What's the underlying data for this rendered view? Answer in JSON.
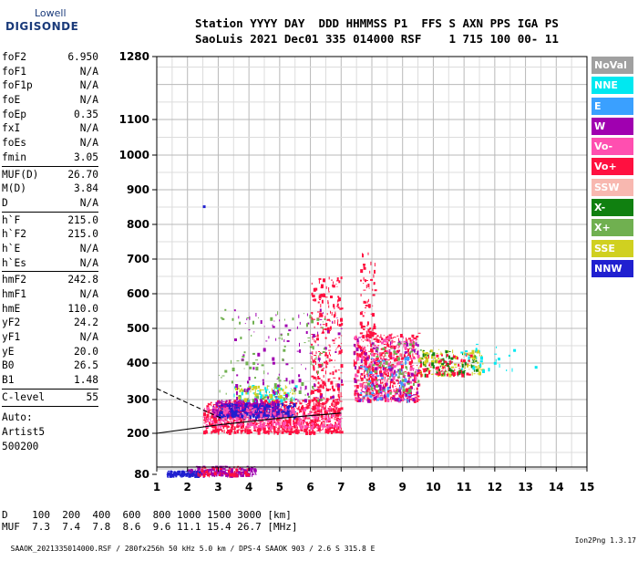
{
  "logo": {
    "line1": "Lowell",
    "line2": "DIGISONDE"
  },
  "header": {
    "line1": "Station YYYY DAY  DDD HHMMSS P1  FFS S AXN PPS IGA PS",
    "line2": "SaoLuis 2021 Dec01 335 014000 RSF    1 715 100 00- 11"
  },
  "params": {
    "g1": [
      [
        "foF2",
        "6.950"
      ],
      [
        "foF1",
        "N/A"
      ],
      [
        "foF1p",
        "N/A"
      ],
      [
        "foE",
        "N/A"
      ],
      [
        "foEp",
        "0.35"
      ],
      [
        "fxI",
        "N/A"
      ],
      [
        "foEs",
        "N/A"
      ],
      [
        "fmin",
        "3.05"
      ]
    ],
    "g2": [
      [
        "MUF(D)",
        "26.70"
      ],
      [
        "M(D)",
        "3.84"
      ],
      [
        "D",
        "N/A"
      ]
    ],
    "g3": [
      [
        "h`F",
        "215.0"
      ],
      [
        "h`F2",
        "215.0"
      ],
      [
        "h`E",
        "N/A"
      ],
      [
        "h`Es",
        "N/A"
      ]
    ],
    "g4": [
      [
        "hmF2",
        "242.8"
      ],
      [
        "hmF1",
        "N/A"
      ],
      [
        "hmE",
        "110.0"
      ],
      [
        "yF2",
        "24.2"
      ],
      [
        "yF1",
        "N/A"
      ],
      [
        "yE",
        "20.0"
      ],
      [
        "B0",
        "26.5"
      ],
      [
        "B1",
        "1.48"
      ]
    ],
    "g5": [
      [
        "C-level",
        "55"
      ]
    ],
    "auto": [
      "Auto:",
      "Artist5",
      "500200"
    ]
  },
  "legend": [
    {
      "label": "NoVal",
      "color": "#a0a0a0"
    },
    {
      "label": "NNE",
      "color": "#00e8f0"
    },
    {
      "label": "E",
      "color": "#3aa0ff"
    },
    {
      "label": "W",
      "color": "#a000b0"
    },
    {
      "label": "Vo-",
      "color": "#ff4fb0"
    },
    {
      "label": "Vo+",
      "color": "#ff1040"
    },
    {
      "label": "SSW",
      "color": "#f8b8b0"
    },
    {
      "label": "X-",
      "color": "#108010"
    },
    {
      "label": "X+",
      "color": "#70b050"
    },
    {
      "label": "SSE",
      "color": "#d0d020"
    },
    {
      "label": "NNW",
      "color": "#2020d0"
    }
  ],
  "bottom": {
    "d_row": "D    100  200  400  600  800 1000 1500 3000 [km]",
    "muf_row": "MUF  7.3  7.4  7.8  8.6  9.6 11.1 15.4 26.7 [MHz]"
  },
  "footer": {
    "info": "SAAOK_2021335014000.RSF / 280fx256h 50 kHz 5.0 km / DPS-4 SAAOK 903 / 2.6 S 315.8 E",
    "version": "Ion2Png 1.3.17"
  },
  "chart_data": {
    "type": "scatter",
    "title": "",
    "xlabel": "",
    "ylabel": "",
    "xlim": [
      1,
      15
    ],
    "x_ticks": [
      1,
      2,
      3,
      4,
      5,
      6,
      7,
      8,
      9,
      10,
      11,
      12,
      13,
      14,
      15
    ],
    "y_ticks": [
      80,
      200,
      300,
      400,
      500,
      600,
      700,
      800,
      900,
      1000,
      1100,
      1280
    ],
    "y_scale": "nonlinear",
    "grid": true,
    "legend": "right",
    "trace_lines": [
      {
        "style": "solid",
        "points": [
          [
            1,
            200
          ],
          [
            3,
            225
          ],
          [
            5,
            245
          ],
          [
            7,
            260
          ]
        ]
      },
      {
        "style": "dashed",
        "points": [
          [
            1,
            330
          ],
          [
            2,
            290
          ],
          [
            2.6,
            265
          ],
          [
            3.1,
            245
          ]
        ]
      }
    ],
    "clusters": [
      {
        "series": "Vo+",
        "x": [
          2.5,
          7.0
        ],
        "y": [
          205,
          300
        ],
        "n": 900
      },
      {
        "series": "W",
        "x": [
          2.8,
          5.0
        ],
        "y": [
          255,
          300
        ],
        "n": 350
      },
      {
        "series": "NNW",
        "x": [
          3.0,
          5.5
        ],
        "y": [
          250,
          290
        ],
        "n": 250
      },
      {
        "series": "Vo-",
        "x": [
          2.5,
          7.0
        ],
        "y": [
          220,
          280
        ],
        "n": 300
      },
      {
        "series": "NNE",
        "x": [
          3.5,
          5.5
        ],
        "y": [
          300,
          340
        ],
        "n": 60
      },
      {
        "series": "SSE",
        "x": [
          3.5,
          5.5
        ],
        "y": [
          300,
          340
        ],
        "n": 60
      },
      {
        "series": "Vo+",
        "x": [
          6.0,
          7.0
        ],
        "y": [
          300,
          650
        ],
        "n": 250
      },
      {
        "series": "W",
        "x": [
          3.5,
          7.0
        ],
        "y": [
          300,
          560
        ],
        "n": 120
      },
      {
        "series": "X+",
        "x": [
          3.0,
          6.5
        ],
        "y": [
          300,
          560
        ],
        "n": 100
      },
      {
        "series": "Vo+",
        "x": [
          7.4,
          9.5
        ],
        "y": [
          300,
          490
        ],
        "n": 500
      },
      {
        "series": "Vo-",
        "x": [
          7.4,
          9.5
        ],
        "y": [
          300,
          480
        ],
        "n": 200
      },
      {
        "series": "W",
        "x": [
          7.4,
          9.5
        ],
        "y": [
          300,
          480
        ],
        "n": 140
      },
      {
        "series": "E",
        "x": [
          7.6,
          9.2
        ],
        "y": [
          300,
          420
        ],
        "n": 60
      },
      {
        "series": "X+",
        "x": [
          7.8,
          9.5
        ],
        "y": [
          320,
          470
        ],
        "n": 80
      },
      {
        "series": "Vo+",
        "x": [
          7.6,
          8.1
        ],
        "y": [
          480,
          720
        ],
        "n": 70
      },
      {
        "series": "SSE",
        "x": [
          9.5,
          11.6
        ],
        "y": [
          370,
          440
        ],
        "n": 120
      },
      {
        "series": "X-",
        "x": [
          9.5,
          11.4
        ],
        "y": [
          370,
          440
        ],
        "n": 80
      },
      {
        "series": "Vo+",
        "x": [
          9.5,
          11.2
        ],
        "y": [
          370,
          430
        ],
        "n": 80
      },
      {
        "series": "NNE",
        "x": [
          10.8,
          12.6
        ],
        "y": [
          380,
          460
        ],
        "n": 25
      },
      {
        "series": "W",
        "x": [
          2.0,
          4.2
        ],
        "y": [
          80,
          110
        ],
        "n": 220
      },
      {
        "series": "NNW",
        "x": [
          1.3,
          2.4
        ],
        "y": [
          80,
          95
        ],
        "n": 120
      },
      {
        "series": "Vo+",
        "x": [
          2.3,
          4.0
        ],
        "y": [
          80,
          110
        ],
        "n": 60
      }
    ],
    "points": [
      {
        "series": "NNW",
        "x": 2.5,
        "y": 855
      },
      {
        "series": "NNE",
        "x": 13.3,
        "y": 392
      }
    ]
  }
}
